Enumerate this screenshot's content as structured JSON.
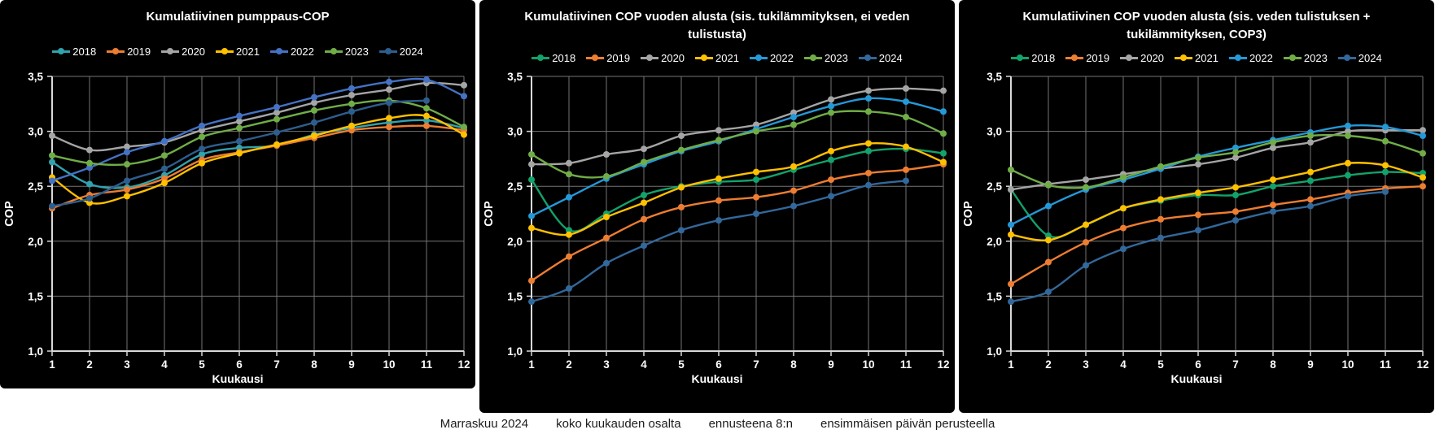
{
  "chart_data": [
    {
      "type": "line",
      "title": "Kumulatiivinen pumppaus-COP",
      "xlabel": "Kuukausi",
      "ylabel": "COP",
      "x": [
        1,
        2,
        3,
        4,
        5,
        6,
        7,
        8,
        9,
        10,
        11,
        12
      ],
      "ylim": [
        1.0,
        3.5
      ],
      "yticks": [
        "3,5",
        "3,0",
        "2,5",
        "2,0",
        "1,5",
        "1,0"
      ],
      "ytick_values": [
        3.5,
        3.0,
        2.5,
        2.0,
        1.5,
        1.0
      ],
      "grid": true,
      "legend_position": "top",
      "background": "#000000",
      "series": [
        {
          "name": "2018",
          "color": "#31A2AE",
          "values": [
            2.72,
            2.52,
            2.49,
            2.6,
            2.79,
            2.85,
            2.87,
            2.97,
            3.03,
            3.08,
            3.1,
            3.03
          ]
        },
        {
          "name": "2019",
          "color": "#ED7D31",
          "values": [
            2.3,
            2.42,
            2.47,
            2.57,
            2.74,
            2.81,
            2.87,
            2.94,
            3.01,
            3.04,
            3.05,
            3.01
          ]
        },
        {
          "name": "2020",
          "color": "#A5A5A5",
          "values": [
            2.96,
            2.83,
            2.86,
            2.9,
            3.01,
            3.09,
            3.17,
            3.26,
            3.33,
            3.38,
            3.44,
            3.42
          ]
        },
        {
          "name": "2021",
          "color": "#FFC000",
          "values": [
            2.58,
            2.35,
            2.41,
            2.53,
            2.71,
            2.8,
            2.88,
            2.96,
            3.05,
            3.12,
            3.14,
            2.97
          ]
        },
        {
          "name": "2022",
          "color": "#4472C4",
          "values": [
            2.55,
            2.67,
            2.81,
            2.91,
            3.05,
            3.14,
            3.22,
            3.31,
            3.39,
            3.45,
            3.47,
            3.32
          ]
        },
        {
          "name": "2023",
          "color": "#70AD47",
          "values": [
            2.78,
            2.71,
            2.7,
            2.78,
            2.95,
            3.03,
            3.11,
            3.19,
            3.25,
            3.28,
            3.21,
            3.04
          ]
        },
        {
          "name": "2024",
          "color": "#2D5E8E",
          "values": [
            2.32,
            2.39,
            2.55,
            2.66,
            2.84,
            2.91,
            2.99,
            3.08,
            3.18,
            3.26,
            3.28
          ]
        }
      ]
    },
    {
      "type": "line",
      "title": "Kumulatiivinen COP vuoden alusta (sis. tukilämmityksen, ei veden tulistusta)",
      "xlabel": "Kuukausi",
      "ylabel": "COP",
      "x": [
        1,
        2,
        3,
        4,
        5,
        6,
        7,
        8,
        9,
        10,
        11,
        12
      ],
      "ylim": [
        1.0,
        3.5
      ],
      "yticks": [
        "3,5",
        "3,0",
        "2,5",
        "2,0",
        "1,5",
        "1,0"
      ],
      "ytick_values": [
        3.5,
        3.0,
        2.5,
        2.0,
        1.5,
        1.0
      ],
      "grid": true,
      "legend_position": "top",
      "background": "#000000",
      "series": [
        {
          "name": "2018",
          "color": "#12A26B",
          "values": [
            2.56,
            2.1,
            2.25,
            2.42,
            2.5,
            2.54,
            2.56,
            2.65,
            2.74,
            2.82,
            2.84,
            2.8
          ]
        },
        {
          "name": "2019",
          "color": "#ED7D31",
          "values": [
            1.64,
            1.86,
            2.03,
            2.2,
            2.31,
            2.37,
            2.4,
            2.46,
            2.56,
            2.62,
            2.65,
            2.7
          ]
        },
        {
          "name": "2020",
          "color": "#A5A5A5",
          "values": [
            2.7,
            2.71,
            2.79,
            2.84,
            2.96,
            3.01,
            3.06,
            3.17,
            3.29,
            3.37,
            3.39,
            3.37
          ]
        },
        {
          "name": "2021",
          "color": "#FFC000",
          "values": [
            2.12,
            2.06,
            2.22,
            2.35,
            2.49,
            2.57,
            2.63,
            2.68,
            2.82,
            2.89,
            2.86,
            2.72
          ]
        },
        {
          "name": "2022",
          "color": "#2499D8",
          "values": [
            2.23,
            2.4,
            2.57,
            2.7,
            2.82,
            2.91,
            3.02,
            3.13,
            3.23,
            3.3,
            3.27,
            3.18
          ]
        },
        {
          "name": "2023",
          "color": "#70AD47",
          "values": [
            2.79,
            2.61,
            2.59,
            2.72,
            2.83,
            2.92,
            3.0,
            3.06,
            3.17,
            3.18,
            3.13,
            2.98
          ]
        },
        {
          "name": "2024",
          "color": "#32689B",
          "values": [
            1.45,
            1.57,
            1.8,
            1.96,
            2.1,
            2.19,
            2.25,
            2.32,
            2.41,
            2.51,
            2.55
          ]
        }
      ]
    },
    {
      "type": "line",
      "title": "Kumulatiivinen COP vuoden alusta (sis. veden tulistuksen + tukilämmityksen, COP3)",
      "xlabel": "Kuukausi",
      "ylabel": "COP",
      "x": [
        1,
        2,
        3,
        4,
        5,
        6,
        7,
        8,
        9,
        10,
        11,
        12
      ],
      "ylim": [
        1.0,
        3.5
      ],
      "yticks": [
        "3,5",
        "3,0",
        "2,5",
        "2,0",
        "1,5",
        "1,0"
      ],
      "ytick_values": [
        3.5,
        3.0,
        2.5,
        2.0,
        1.5,
        1.0
      ],
      "grid": true,
      "legend_position": "top",
      "background": "#000000",
      "series": [
        {
          "name": "2018",
          "color": "#12A26B",
          "values": [
            2.47,
            2.05,
            2.15,
            2.3,
            2.37,
            2.42,
            2.42,
            2.5,
            2.55,
            2.6,
            2.63,
            2.62
          ]
        },
        {
          "name": "2019",
          "color": "#ED7D31",
          "values": [
            1.61,
            1.81,
            1.99,
            2.12,
            2.2,
            2.24,
            2.27,
            2.33,
            2.38,
            2.44,
            2.48,
            2.5
          ]
        },
        {
          "name": "2020",
          "color": "#A5A5A5",
          "values": [
            2.47,
            2.52,
            2.56,
            2.61,
            2.66,
            2.7,
            2.76,
            2.85,
            2.9,
            3.0,
            3.01,
            3.01
          ]
        },
        {
          "name": "2021",
          "color": "#FFC000",
          "values": [
            2.06,
            2.01,
            2.15,
            2.3,
            2.38,
            2.44,
            2.49,
            2.56,
            2.63,
            2.71,
            2.69,
            2.58
          ]
        },
        {
          "name": "2022",
          "color": "#2499D8",
          "values": [
            2.15,
            2.32,
            2.47,
            2.56,
            2.66,
            2.77,
            2.85,
            2.92,
            2.99,
            3.05,
            3.04,
            2.96
          ]
        },
        {
          "name": "2023",
          "color": "#70AD47",
          "values": [
            2.65,
            2.51,
            2.49,
            2.58,
            2.68,
            2.76,
            2.81,
            2.9,
            2.96,
            2.96,
            2.91,
            2.8
          ]
        },
        {
          "name": "2024",
          "color": "#32689B",
          "values": [
            1.45,
            1.54,
            1.78,
            1.93,
            2.03,
            2.1,
            2.19,
            2.27,
            2.32,
            2.41,
            2.45
          ]
        }
      ]
    }
  ],
  "footer": {
    "segments": [
      "Marraskuu 2024",
      "koko kuukauden osalta",
      "ennusteena 8:n",
      "ensimmäisen päivän perusteella"
    ]
  },
  "style": {
    "panel_background": "#000000",
    "gridline_color": "#757575",
    "axis_color": "#D9D9D9",
    "text_color": "#FFFFFF"
  }
}
